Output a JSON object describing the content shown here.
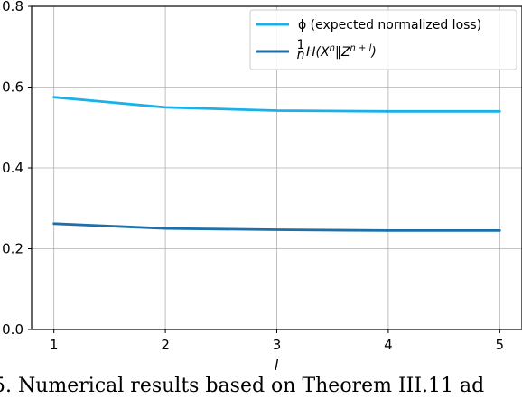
{
  "chart_data": {
    "type": "line",
    "xlabel": "l",
    "ylabel": "",
    "title": "",
    "x_ticks": [
      "1",
      "2",
      "3",
      "4",
      "5"
    ],
    "y_ticks": [
      "0.0",
      "0.2",
      "0.4",
      "0.6",
      "0.8"
    ],
    "xlim": [
      0.8,
      5.2
    ],
    "ylim": [
      0.0,
      0.8
    ],
    "grid": true,
    "legend_position": "top-right",
    "x": [
      1,
      2,
      3,
      4,
      5
    ],
    "series": [
      {
        "name": "ϕ (expected normalized loss)",
        "color": "#1ab0e8",
        "values": [
          0.575,
          0.55,
          0.542,
          0.54,
          0.54
        ]
      },
      {
        "name": "1/n H(X^n‖Z^(n+l))",
        "color": "#1f6fa8",
        "values": [
          0.262,
          0.25,
          0.247,
          0.245,
          0.245
        ]
      }
    ]
  },
  "legend": {
    "series1_label": "ϕ (expected normalized loss)",
    "series2_frac_num": "1",
    "series2_frac_den": "n",
    "series2_h": "H(X",
    "series2_sup1": "n",
    "series2_mid": "‖Z",
    "series2_sup2": "n + l",
    "series2_end": ")"
  },
  "caption": {
    "text": "5. Numerical results based on Theorem III.11 ad"
  }
}
